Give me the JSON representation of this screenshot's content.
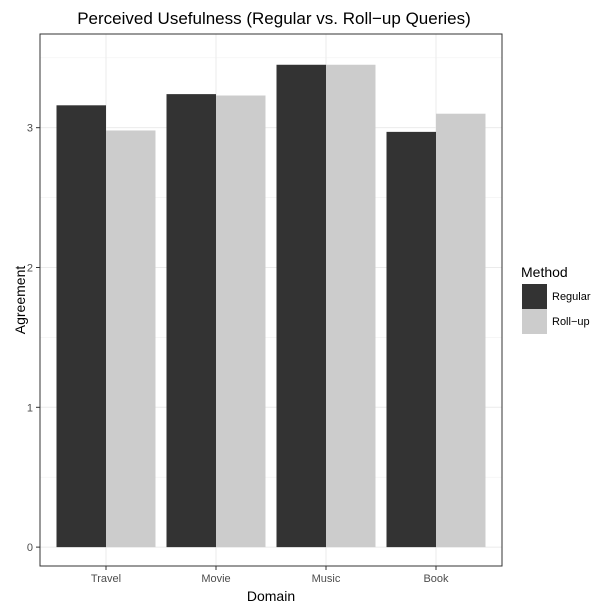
{
  "chart_data": {
    "type": "bar",
    "title": "Perceived Usefulness (Regular vs. Roll−up Queries)",
    "xlabel": "Domain",
    "ylabel": "Agreement",
    "categories": [
      "Travel",
      "Movie",
      "Music",
      "Book"
    ],
    "series": [
      {
        "name": "Regular",
        "values": [
          3.16,
          3.24,
          3.45,
          2.97
        ],
        "color": "#333333"
      },
      {
        "name": "Roll−up",
        "values": [
          2.98,
          3.23,
          3.45,
          3.1
        ],
        "color": "#cccccc"
      }
    ],
    "ylim": [
      -0.135,
      3.67
    ],
    "yticks": [
      0,
      1,
      2,
      3
    ],
    "ytick_labels": [
      "0",
      "1",
      "2",
      "3"
    ],
    "grid": true,
    "legend": {
      "title": "Method",
      "position": "right"
    }
  }
}
